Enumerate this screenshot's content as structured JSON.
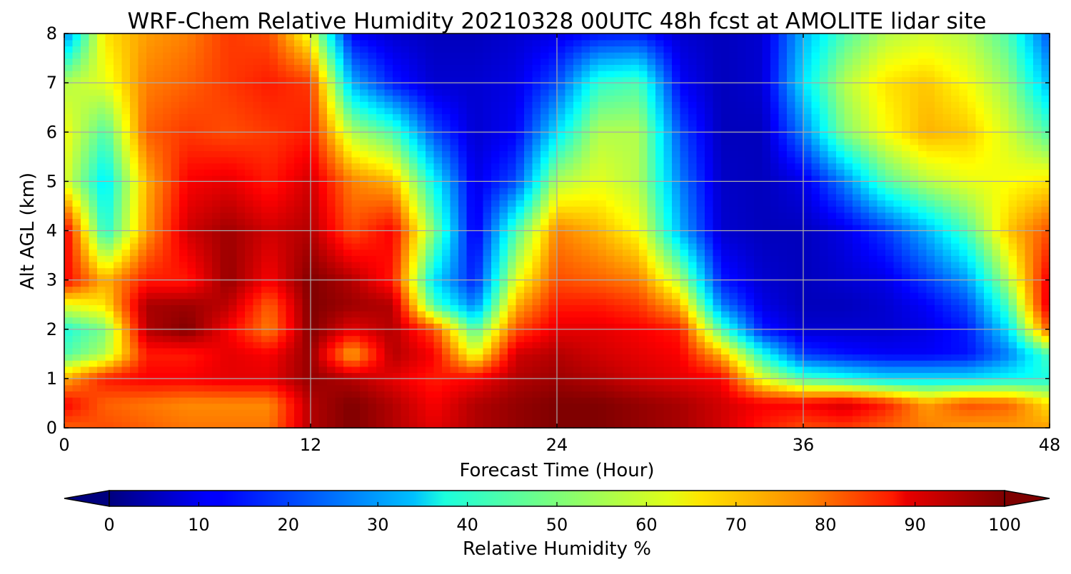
{
  "chart_data": {
    "type": "heatmap",
    "title": "WRF-Chem Relative Humidity 20210328 00UTC 48h fcst at AMOLITE lidar site",
    "xlabel": "Forecast Time (Hour)",
    "ylabel": "Alt AGL (km)",
    "xlim": [
      0,
      48
    ],
    "ylim": [
      0,
      8
    ],
    "x_ticks": [
      0,
      12,
      24,
      36,
      48
    ],
    "y_ticks": [
      0,
      1,
      2,
      3,
      4,
      5,
      6,
      7,
      8
    ],
    "grid": true,
    "colorbar": {
      "label": "Relative Humidity %",
      "min": 0,
      "max": 100,
      "ticks": [
        0,
        10,
        20,
        30,
        40,
        50,
        60,
        70,
        80,
        90,
        100
      ],
      "colormap": "jet",
      "extend": "both"
    },
    "x": [
      0,
      2,
      4,
      6,
      8,
      10,
      12,
      14,
      16,
      18,
      20,
      22,
      24,
      26,
      28,
      30,
      32,
      34,
      36,
      38,
      40,
      42,
      44,
      46,
      48
    ],
    "y": [
      0,
      0.5,
      1,
      1.5,
      2,
      2.5,
      3,
      4,
      5,
      6,
      7,
      8
    ],
    "z": [
      [
        78,
        80,
        78,
        76,
        76,
        76,
        95,
        100,
        95,
        90,
        95,
        98,
        100,
        100,
        98,
        96,
        92,
        85,
        80,
        82,
        78,
        75,
        72,
        72,
        72
      ],
      [
        88,
        78,
        76,
        74,
        74,
        74,
        95,
        100,
        95,
        88,
        95,
        98,
        100,
        100,
        98,
        96,
        92,
        88,
        88,
        92,
        85,
        72,
        80,
        78,
        65
      ],
      [
        70,
        85,
        88,
        88,
        90,
        90,
        98,
        95,
        90,
        85,
        88,
        95,
        97,
        95,
        92,
        90,
        88,
        60,
        45,
        40,
        35,
        35,
        35,
        38,
        40
      ],
      [
        45,
        55,
        85,
        85,
        90,
        88,
        98,
        70,
        95,
        88,
        60,
        92,
        95,
        92,
        90,
        88,
        70,
        40,
        18,
        14,
        12,
        12,
        14,
        25,
        45
      ],
      [
        40,
        50,
        95,
        100,
        88,
        75,
        100,
        90,
        95,
        80,
        45,
        80,
        90,
        90,
        88,
        85,
        45,
        15,
        8,
        8,
        8,
        10,
        15,
        35,
        80
      ],
      [
        60,
        65,
        96,
        97,
        94,
        78,
        100,
        97,
        95,
        45,
        25,
        70,
        85,
        85,
        82,
        70,
        25,
        10,
        6,
        6,
        8,
        12,
        20,
        45,
        92
      ],
      [
        88,
        70,
        85,
        85,
        98,
        88,
        100,
        95,
        85,
        35,
        15,
        60,
        80,
        78,
        75,
        55,
        15,
        8,
        6,
        8,
        10,
        18,
        28,
        55,
        90
      ],
      [
        90,
        40,
        72,
        92,
        97,
        92,
        95,
        80,
        88,
        50,
        10,
        45,
        75,
        70,
        62,
        30,
        8,
        6,
        6,
        10,
        18,
        30,
        45,
        68,
        80
      ],
      [
        60,
        35,
        70,
        88,
        90,
        85,
        92,
        75,
        70,
        38,
        10,
        20,
        55,
        60,
        55,
        25,
        7,
        6,
        10,
        25,
        45,
        55,
        60,
        62,
        65
      ],
      [
        62,
        45,
        78,
        82,
        80,
        82,
        85,
        55,
        45,
        20,
        8,
        12,
        35,
        55,
        55,
        20,
        6,
        6,
        25,
        50,
        62,
        70,
        68,
        58,
        45
      ],
      [
        55,
        60,
        75,
        78,
        82,
        85,
        82,
        30,
        15,
        8,
        8,
        10,
        20,
        42,
        45,
        12,
        6,
        8,
        35,
        55,
        65,
        68,
        62,
        52,
        30
      ],
      [
        25,
        65,
        72,
        75,
        82,
        80,
        60,
        12,
        8,
        6,
        6,
        8,
        10,
        14,
        15,
        8,
        6,
        8,
        30,
        45,
        55,
        58,
        55,
        45,
        20
      ]
    ]
  }
}
